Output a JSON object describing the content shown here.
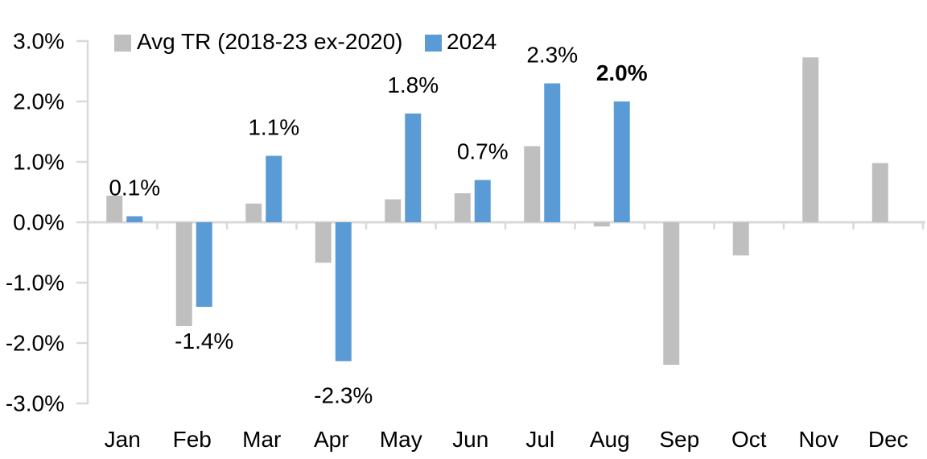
{
  "chart_data": {
    "type": "bar",
    "title": "",
    "categories": [
      "Jan",
      "Feb",
      "Mar",
      "Apr",
      "May",
      "Jun",
      "Jul",
      "Aug",
      "Sep",
      "Oct",
      "Nov",
      "Dec"
    ],
    "series": [
      {
        "name": "Avg TR (2018-23 ex-2020)",
        "color": "#BFBFBF",
        "values": [
          0.44,
          -1.72,
          0.31,
          -0.67,
          0.38,
          0.48,
          1.26,
          -0.07,
          -2.36,
          -0.55,
          2.73,
          0.98
        ]
      },
      {
        "name": "2024",
        "color": "#5B9BD5",
        "values": [
          0.1,
          -1.4,
          1.1,
          -2.3,
          1.8,
          0.7,
          2.3,
          2.0,
          null,
          null,
          null,
          null
        ]
      }
    ],
    "data_labels": [
      {
        "category": "Jan",
        "text": "0.1%",
        "color": "#000000",
        "bold": false
      },
      {
        "category": "Feb",
        "text": "-1.4%",
        "color": "#000000",
        "bold": false
      },
      {
        "category": "Mar",
        "text": "1.1%",
        "color": "#000000",
        "bold": false
      },
      {
        "category": "Apr",
        "text": "-2.3%",
        "color": "#000000",
        "bold": false
      },
      {
        "category": "May",
        "text": "1.8%",
        "color": "#000000",
        "bold": false
      },
      {
        "category": "Jun",
        "text": "0.7%",
        "color": "#000000",
        "bold": false
      },
      {
        "category": "Jul",
        "text": "2.3%",
        "color": "#000000",
        "bold": false
      },
      {
        "category": "Aug",
        "text": "2.0%",
        "color": "#FF0000",
        "bold": true
      }
    ],
    "y_axis": {
      "min": -3.0,
      "max": 3.0,
      "tick_step": 1.0,
      "tick_labels": [
        "3.0%",
        "2.0%",
        "1.0%",
        "0.0%",
        "-1.0%",
        "-2.0%",
        "-3.0%"
      ]
    },
    "xlabel": "",
    "ylabel": "",
    "grid": false,
    "legend_position": "top",
    "colors": {
      "axis": "#D9D9D9",
      "text": "#000000",
      "background": "#FFFFFF"
    }
  }
}
